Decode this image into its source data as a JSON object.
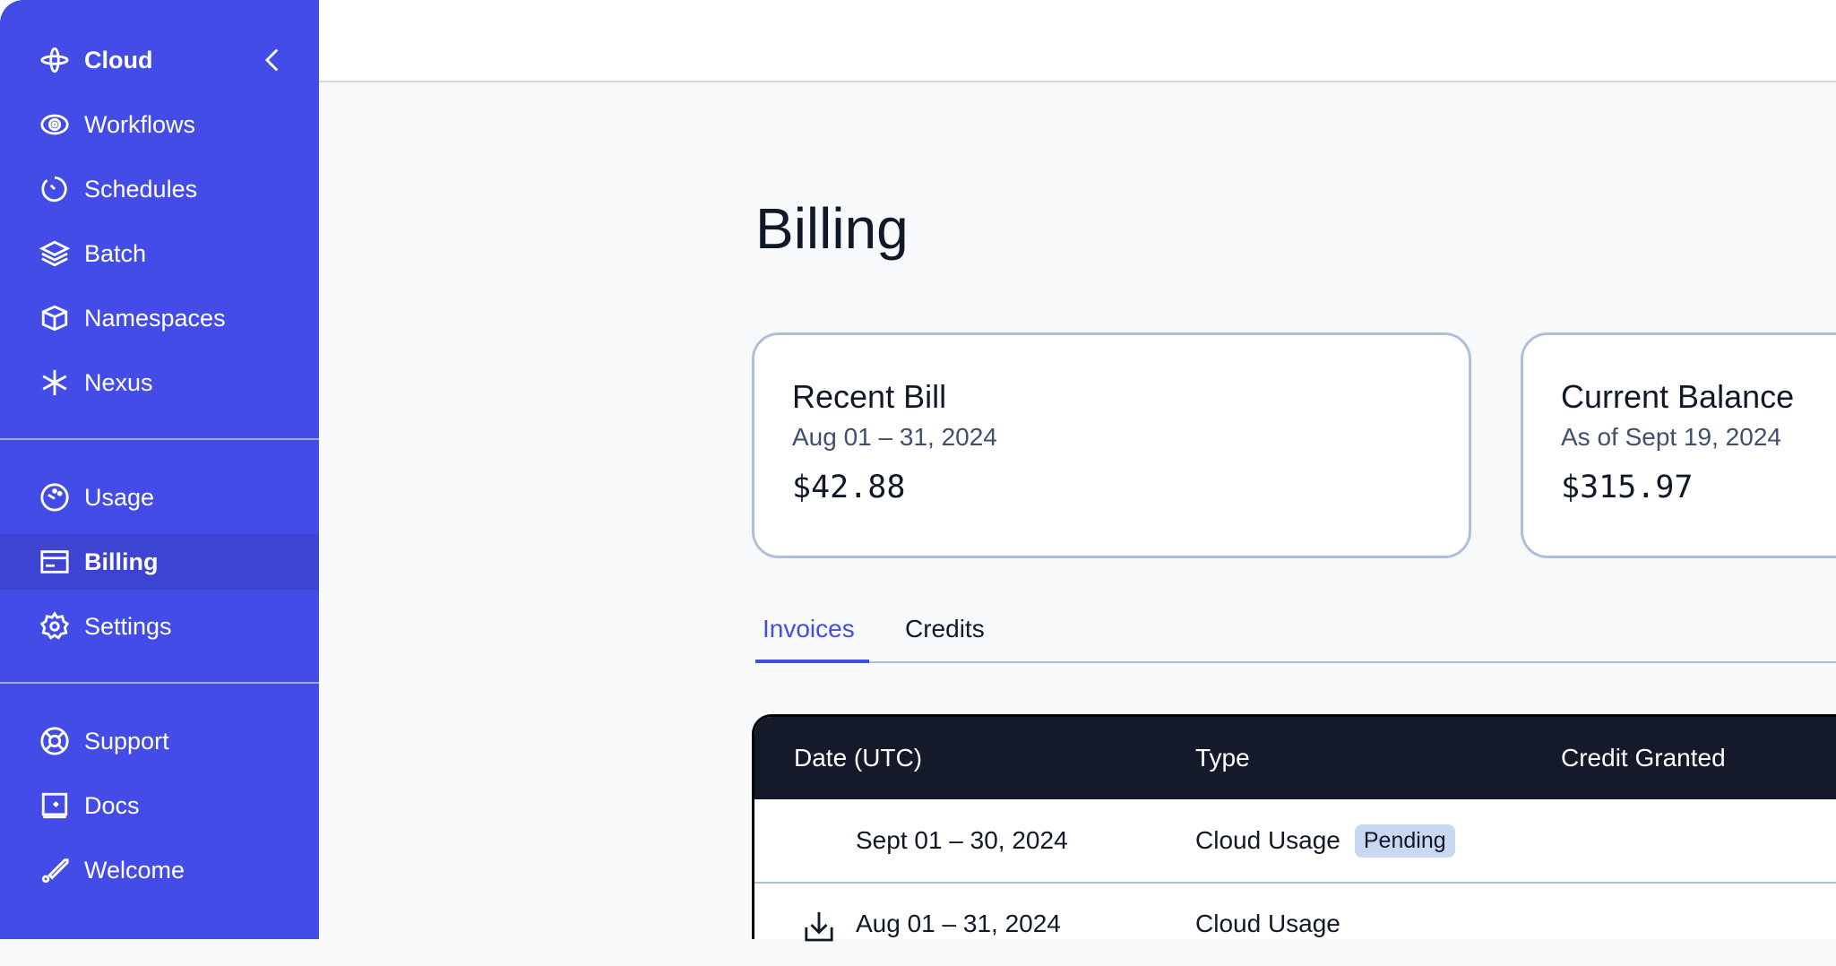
{
  "sidebar": {
    "top": [
      {
        "label": "Cloud",
        "icon": "cloud-icon"
      },
      {
        "label": "Workflows",
        "icon": "workflows-icon"
      },
      {
        "label": "Schedules",
        "icon": "schedules-icon"
      },
      {
        "label": "Batch",
        "icon": "batch-icon"
      },
      {
        "label": "Namespaces",
        "icon": "namespaces-icon"
      },
      {
        "label": "Nexus",
        "icon": "nexus-icon"
      }
    ],
    "middle": [
      {
        "label": "Usage",
        "icon": "usage-icon"
      },
      {
        "label": "Billing",
        "icon": "billing-icon",
        "active": true
      },
      {
        "label": "Settings",
        "icon": "settings-icon"
      }
    ],
    "bottom": [
      {
        "label": "Support",
        "icon": "support-icon"
      },
      {
        "label": "Docs",
        "icon": "docs-icon"
      },
      {
        "label": "Welcome",
        "icon": "welcome-icon"
      }
    ]
  },
  "page": {
    "title": "Billing"
  },
  "cards": [
    {
      "title": "Recent Bill",
      "subtitle": "Aug 01 – 31, 2024",
      "amount": "$42.88"
    },
    {
      "title": "Current Balance",
      "subtitle": "As of Sept 19, 2024",
      "amount": "$315.97"
    }
  ],
  "tabs": [
    {
      "label": "Invoices",
      "active": true
    },
    {
      "label": "Credits"
    }
  ],
  "table": {
    "headers": [
      "Date (UTC)",
      "Type",
      "Credit Granted"
    ],
    "rows": [
      {
        "date": "Sept 01 – 30, 2024",
        "type": "Cloud Usage",
        "badge": "Pending"
      },
      {
        "date": "Aug 01 – 31, 2024",
        "type": "Cloud Usage",
        "download": true
      }
    ]
  },
  "colors": {
    "accent": "#444ce7",
    "table_header": "#141a29",
    "badge": "#c8d8f0"
  }
}
